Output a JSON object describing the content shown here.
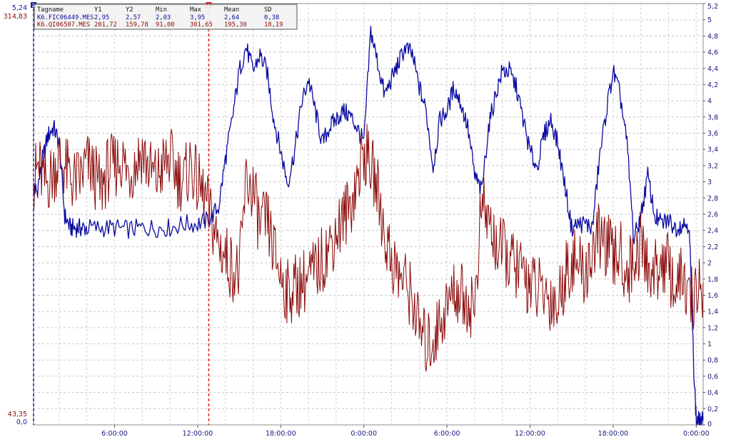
{
  "chart_data": {
    "type": "line",
    "title": "",
    "grid": true,
    "legend_position": "top-left",
    "left_axis_labels": {
      "y1_top": "5,24",
      "y2_top": "314,83",
      "y2_bottom": "43,35",
      "y1_bottom": "0,0"
    },
    "right_axis": {
      "min": 0,
      "max": 5.2,
      "step": 0.2,
      "tick_labels": [
        "0",
        "0,2",
        "0,4",
        "0,6",
        "0,8",
        "1",
        "1,2",
        "1,4",
        "1,6",
        "1,8",
        "2",
        "2,2",
        "2,4",
        "2,6",
        "2,8",
        "3",
        "3,2",
        "3,4",
        "3,6",
        "3,8",
        "4",
        "4,2",
        "4,4",
        "4,6",
        "4,8",
        "5",
        "5,2"
      ]
    },
    "x_axis": {
      "tick_labels": [
        "6:00:00",
        "12:00:00",
        "18:00:00",
        "0:00:00",
        "6:00:00",
        "12:00:00",
        "18:00:00",
        "0:00:00"
      ],
      "tick_hours": [
        6,
        12,
        18,
        24,
        30,
        36,
        42,
        48
      ],
      "range_hours": [
        0.15,
        48.5
      ]
    },
    "cursors": [
      {
        "label": "2",
        "hour": 0.15,
        "color": "#1a1a9e"
      },
      {
        "label": "1",
        "hour": 12.8,
        "color": "#e02020"
      }
    ],
    "legend": {
      "headers": [
        "Tagname",
        "Y1",
        "Y2",
        "Min",
        "Max",
        "Mean",
        "SD"
      ],
      "rows": [
        [
          "K6.FIC06449.MES",
          "2,95",
          "2,57",
          "2,03",
          "3,95",
          "2,64",
          "0,38"
        ],
        [
          "K6.QI06507.MES",
          "201,72",
          "159,78",
          "91,00",
          "301,65",
          "195,30",
          "18,19"
        ]
      ]
    },
    "series": [
      {
        "name": "K6.FIC06449.MES",
        "color": "#0a0aa0",
        "axis": "y1",
        "min": 0,
        "max": 5.24,
        "x": [
          0.15,
          0.4,
          0.8,
          1.2,
          1.6,
          2.0,
          2.4,
          2.8,
          3.2,
          3.6,
          4.0,
          5.0,
          6.0,
          7.0,
          8.0,
          9.0,
          10.0,
          11.0,
          12.0,
          12.8,
          13.5,
          14.0,
          14.5,
          15.0,
          15.5,
          16.0,
          16.5,
          17.0,
          17.5,
          18.0,
          18.5,
          19.0,
          19.5,
          20.0,
          20.5,
          21.0,
          21.5,
          22.0,
          22.5,
          23.0,
          23.5,
          24.0,
          24.5,
          25.0,
          25.5,
          26.0,
          26.5,
          27.0,
          27.5,
          28.0,
          28.5,
          29.0,
          29.5,
          30.0,
          30.5,
          31.0,
          31.5,
          32.0,
          32.5,
          33.0,
          33.5,
          34.0,
          34.5,
          35.0,
          35.5,
          36.0,
          36.5,
          37.0,
          37.5,
          38.0,
          38.5,
          39.0,
          39.5,
          40.0,
          40.5,
          41.0,
          41.5,
          42.0,
          42.5,
          43.0,
          43.5,
          44.0,
          44.5,
          45.0,
          45.5,
          46.0,
          46.5,
          47.0,
          47.5,
          47.8,
          48.0,
          48.2,
          48.5
        ],
        "values": [
          2.95,
          2.9,
          3.3,
          3.6,
          3.7,
          3.5,
          2.6,
          2.45,
          2.45,
          2.45,
          2.45,
          2.45,
          2.45,
          2.43,
          2.45,
          2.45,
          2.45,
          2.5,
          2.5,
          2.55,
          2.7,
          3.3,
          3.8,
          4.4,
          4.7,
          4.4,
          4.6,
          4.4,
          3.8,
          3.4,
          3.0,
          3.4,
          4.0,
          4.3,
          3.9,
          3.5,
          3.7,
          3.8,
          3.9,
          3.85,
          3.7,
          3.5,
          4.9,
          4.5,
          4.1,
          4.3,
          4.5,
          4.7,
          4.6,
          4.2,
          3.9,
          3.2,
          3.8,
          3.9,
          4.2,
          4.0,
          3.7,
          3.1,
          2.9,
          3.7,
          4.1,
          4.4,
          4.4,
          4.2,
          3.8,
          3.4,
          3.2,
          3.6,
          3.8,
          3.5,
          3.0,
          2.45,
          2.5,
          2.5,
          2.45,
          3.3,
          3.9,
          4.4,
          4.1,
          3.5,
          2.3,
          2.6,
          3.1,
          2.6,
          2.5,
          2.55,
          2.45,
          2.5,
          2.5,
          0.8,
          0.05,
          0.05,
          0.05
        ]
      },
      {
        "name": "K6.QI06507.MES",
        "color": "#8b0a0a",
        "axis": "y2",
        "min": 43.35,
        "max": 314.83,
        "x": [
          0.15,
          0.5,
          1.0,
          1.5,
          2.0,
          2.5,
          3.0,
          3.5,
          4.0,
          4.5,
          5.0,
          5.5,
          6.0,
          6.5,
          7.0,
          7.5,
          8.0,
          8.5,
          9.0,
          9.5,
          10.0,
          10.5,
          11.0,
          11.5,
          12.0,
          12.5,
          13.0,
          13.5,
          14.0,
          14.5,
          15.0,
          15.5,
          16.0,
          16.5,
          17.0,
          17.5,
          18.0,
          18.5,
          19.0,
          19.5,
          20.0,
          20.5,
          21.0,
          21.5,
          22.0,
          22.5,
          23.0,
          23.5,
          24.0,
          24.5,
          25.0,
          25.5,
          26.0,
          26.5,
          27.0,
          27.5,
          28.0,
          28.5,
          29.0,
          29.5,
          30.0,
          30.5,
          31.0,
          31.5,
          32.0,
          32.5,
          33.0,
          33.5,
          34.0,
          34.5,
          35.0,
          35.5,
          36.0,
          36.5,
          37.0,
          37.5,
          38.0,
          38.5,
          39.0,
          39.5,
          40.0,
          40.5,
          41.0,
          41.5,
          42.0,
          42.5,
          43.0,
          43.5,
          44.0,
          44.5,
          45.0,
          45.5,
          46.0,
          46.5,
          47.0,
          47.5,
          48.0,
          48.5
        ],
        "values": [
          201.72,
          210,
          198,
          205,
          215,
          208,
          200,
          202,
          212,
          205,
          195,
          208,
          210,
          215,
          205,
          212,
          220,
          208,
          202,
          210,
          215,
          205,
          200,
          212,
          198,
          190,
          175,
          160,
          152,
          145,
          140,
          200,
          195,
          170,
          175,
          155,
          140,
          128,
          132,
          135,
          138,
          142,
          150,
          158,
          168,
          176,
          185,
          200,
          220,
          210,
          195,
          165,
          150,
          140,
          135,
          125,
          105,
          95,
          98,
          110,
          120,
          130,
          128,
          122,
          120,
          185,
          175,
          160,
          155,
          150,
          145,
          140,
          135,
          130,
          128,
          125,
          120,
          140,
          150,
          145,
          140,
          155,
          165,
          160,
          150,
          155,
          140,
          150,
          160,
          145,
          140,
          150,
          145,
          130,
          140,
          120,
          130,
          135
        ]
      }
    ]
  }
}
